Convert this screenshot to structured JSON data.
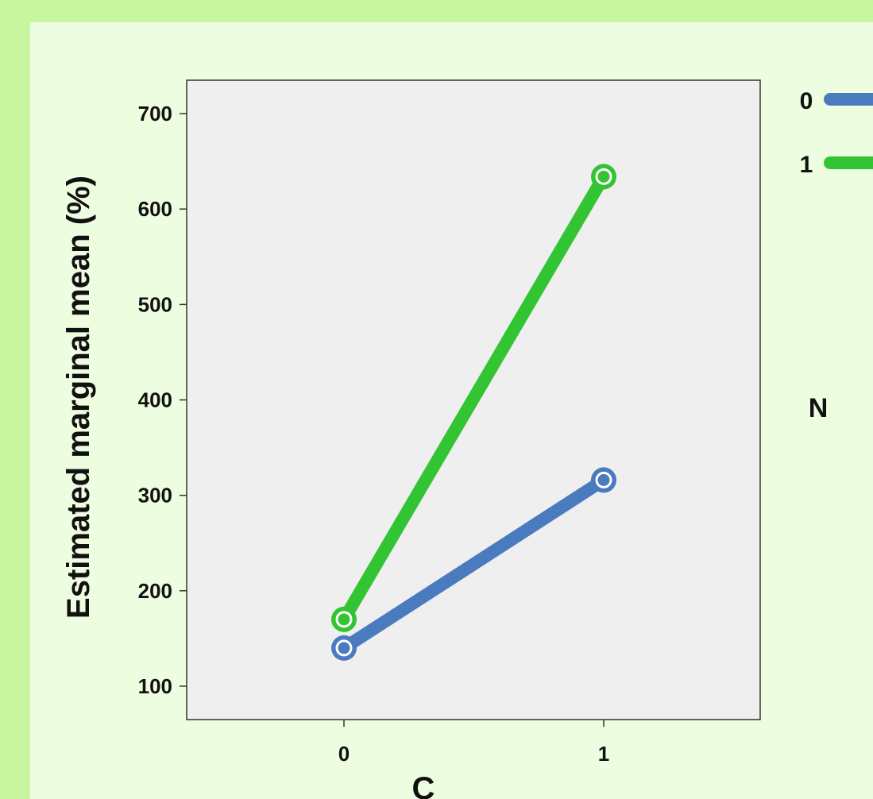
{
  "chart_data": {
    "type": "line",
    "x": [
      "0",
      "1"
    ],
    "xlabel": "C",
    "ylabel": "Estimated marginal mean (%)",
    "yticks": [
      100,
      200,
      300,
      400,
      500,
      600,
      700
    ],
    "ylim": [
      65,
      735
    ],
    "grid": false,
    "legend_title": "N",
    "legend_position": "right",
    "series": [
      {
        "name": "0",
        "color": "#4a7bbf",
        "values": [
          140,
          316
        ]
      },
      {
        "name": "1",
        "color": "#33c433",
        "values": [
          170,
          634
        ]
      }
    ]
  },
  "colors": {
    "page_background": "#c8f5a0",
    "card_background": "#ecfde0",
    "plot_background": "#efefef"
  }
}
